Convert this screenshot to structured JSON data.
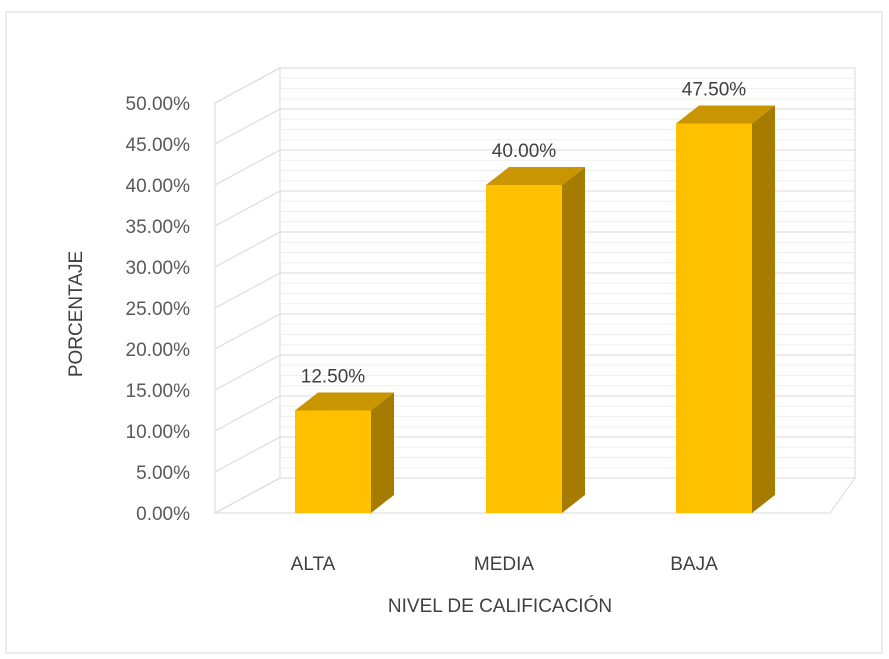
{
  "chart_data": {
    "type": "bar",
    "categories": [
      "ALTA",
      "MEDIA",
      "BAJA"
    ],
    "values": [
      12.5,
      40.0,
      47.5
    ],
    "data_labels": [
      "12.50%",
      "40.00%",
      "47.50%"
    ],
    "title": "",
    "xlabel": "NIVEL DE CALIFICACIÓN",
    "ylabel": "PORCENTAJE",
    "ylim": [
      0,
      50
    ],
    "y_ticks": [
      {
        "value": 0,
        "label": "0.00%"
      },
      {
        "value": 5,
        "label": "5.00%"
      },
      {
        "value": 10,
        "label": "10.00%"
      },
      {
        "value": 15,
        "label": "15.00%"
      },
      {
        "value": 20,
        "label": "20.00%"
      },
      {
        "value": 25,
        "label": "25.00%"
      },
      {
        "value": 30,
        "label": "30.00%"
      },
      {
        "value": 35,
        "label": "35.00%"
      },
      {
        "value": 40,
        "label": "40.00%"
      },
      {
        "value": 45,
        "label": "45.00%"
      },
      {
        "value": 50,
        "label": "50.00%"
      }
    ],
    "grid": true,
    "style": "3d-column",
    "colors": {
      "bar_front": "#FFC000",
      "bar_side": "#A67C00",
      "bar_top": "#C99500",
      "grid": "#d9d9d9",
      "frame": "#d9d9d9"
    }
  }
}
